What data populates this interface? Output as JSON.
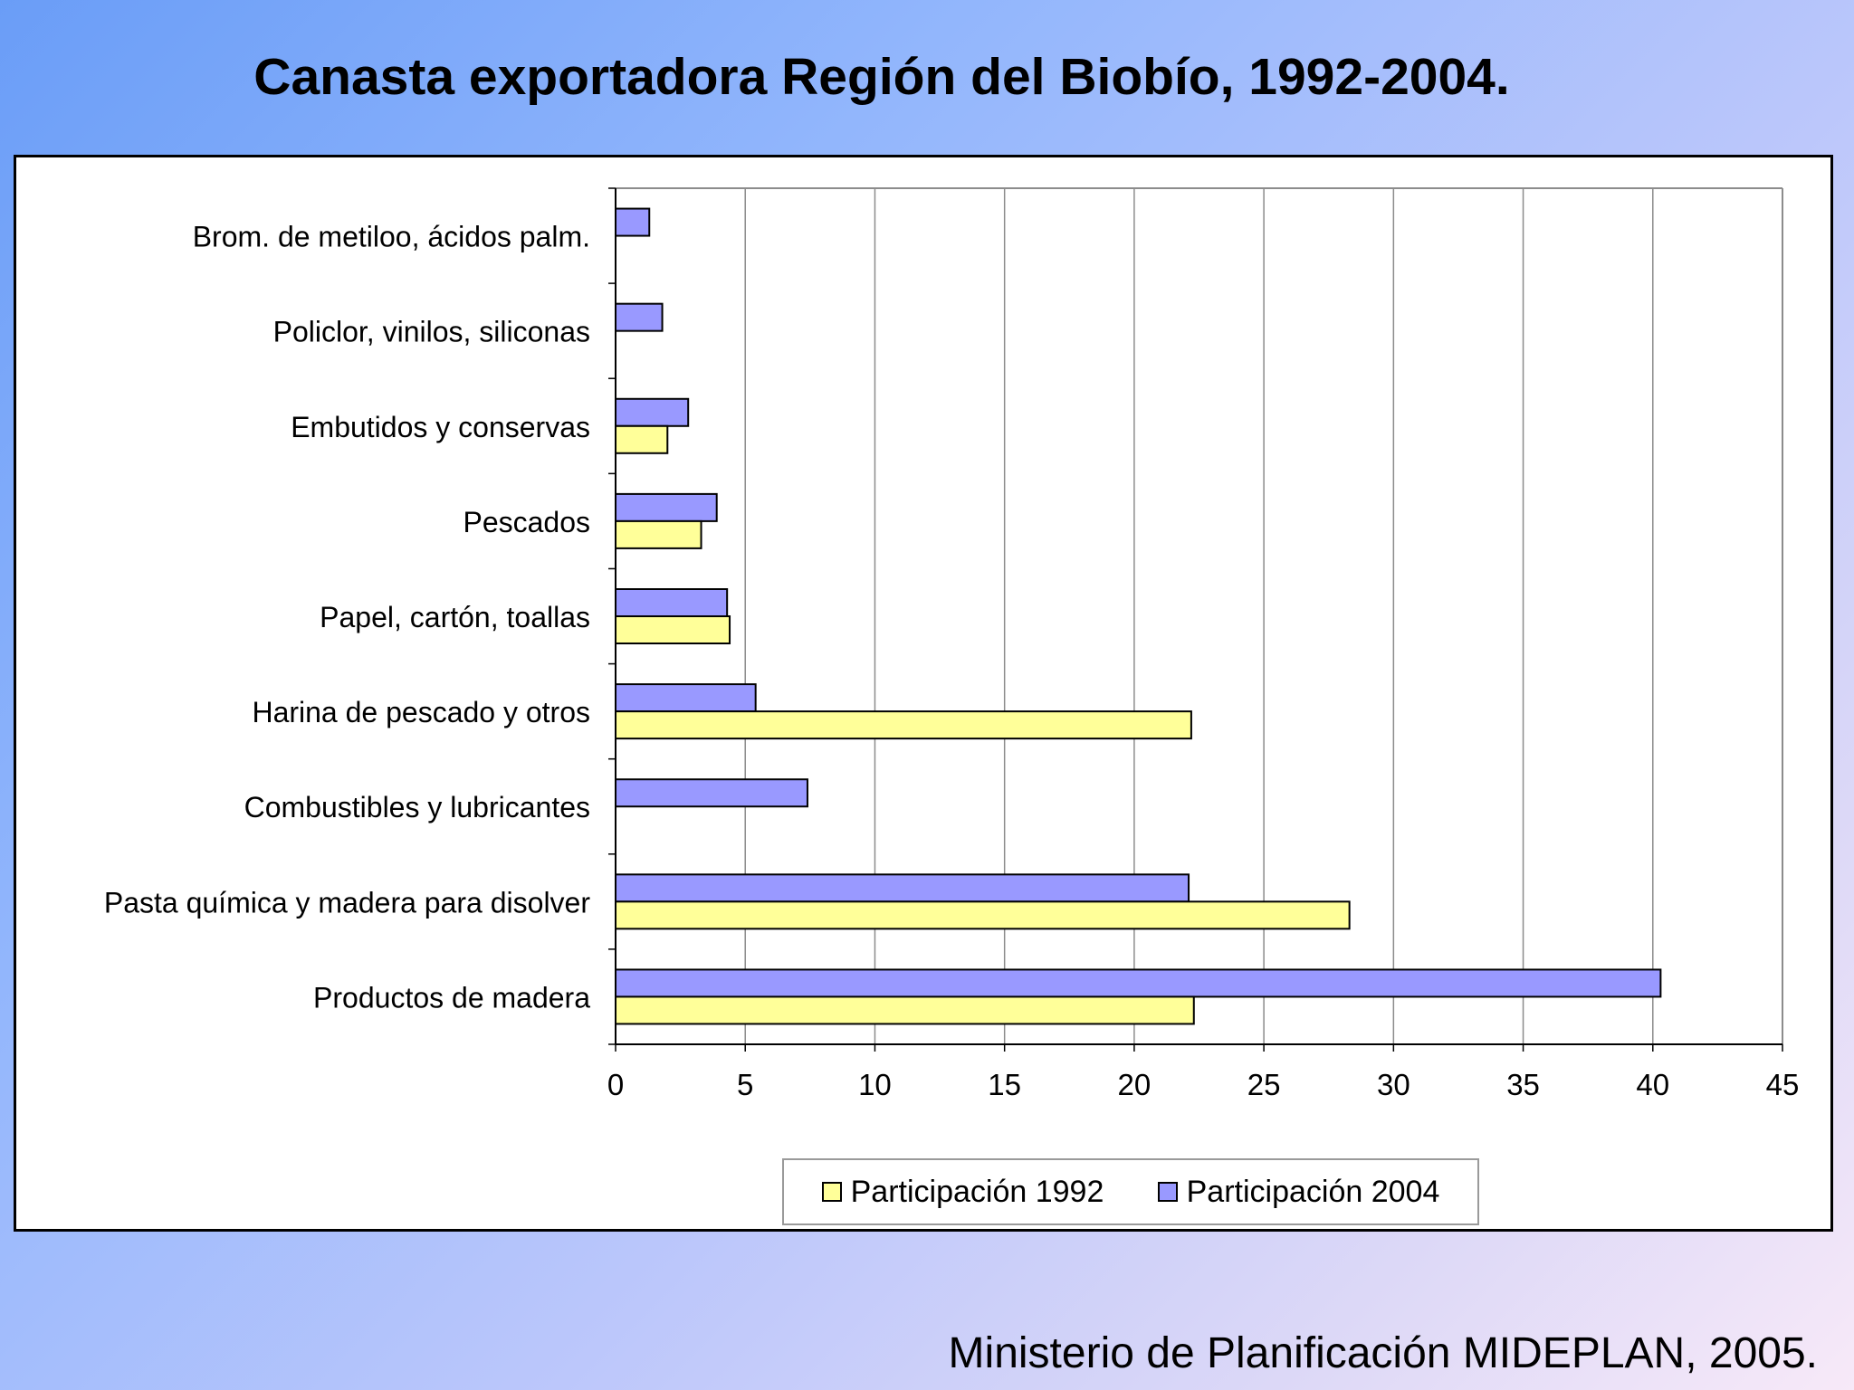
{
  "slide": {
    "title": "Canasta exportadora Región del Biobío, 1992-2004.",
    "source": "Ministerio de Planificación MIDEPLAN, 2005."
  },
  "chart_data": {
    "type": "bar",
    "orientation": "horizontal",
    "categories": [
      "Brom. de metiloo, ácidos palm.",
      "Policlor, vinilos, siliconas",
      "Embutidos y conservas",
      "Pescados",
      "Papel, cartón, toallas",
      "Harina de pescado y otros",
      "Combustibles y lubricantes",
      "Pasta química y madera para disolver",
      "Productos de madera"
    ],
    "series": [
      {
        "name": "Participación 1992",
        "color": "#ffff99",
        "values": [
          null,
          null,
          2.0,
          3.3,
          4.4,
          22.2,
          null,
          28.3,
          22.3
        ]
      },
      {
        "name": "Participación 2004",
        "color": "#9999ff",
        "values": [
          1.3,
          1.8,
          2.8,
          3.9,
          4.3,
          5.4,
          7.4,
          22.1,
          40.3
        ]
      }
    ],
    "xlim": [
      0,
      45
    ],
    "xticks": [
      0,
      5,
      10,
      15,
      20,
      25,
      30,
      35,
      40,
      45
    ],
    "xlabel": "",
    "ylabel": "",
    "grid": true,
    "legend_position": "bottom"
  }
}
